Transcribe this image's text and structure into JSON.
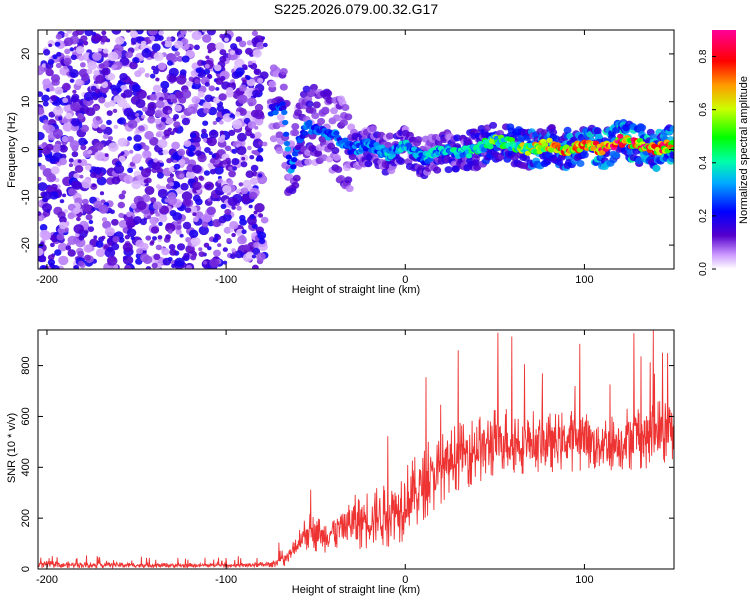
{
  "chart_data": [
    {
      "type": "heatmap",
      "title": "S225.2026.079.00.32.G17",
      "xlabel": "Height of straight line (km)",
      "ylabel": "Frequency (Hz)",
      "xlim": [
        -205,
        150
      ],
      "ylim": [
        -25,
        25
      ],
      "xticks": [
        -200,
        -100,
        0,
        100
      ],
      "xtick_labels": [
        "-200",
        "-100",
        "0",
        "100"
      ],
      "yticks": [
        -20,
        -10,
        0,
        10,
        20
      ],
      "ytick_labels": [
        "-20",
        "-10",
        "0",
        "10",
        "20"
      ],
      "colorbar": {
        "label": "Normalized spectral amplitude",
        "range": [
          0,
          0.9
        ],
        "ticks": [
          0.0,
          0.2,
          0.4,
          0.6,
          0.8
        ],
        "tick_labels": [
          "0.0",
          "0.2",
          "0.4",
          "0.6",
          "0.8"
        ]
      },
      "noise_region": {
        "x_range": [
          -205,
          -78
        ],
        "freq_range": [
          -25,
          25
        ],
        "amplitude": 0.1
      },
      "ridge": [
        {
          "x": -75,
          "f": 8,
          "amp": 0.25
        },
        {
          "x": -68,
          "f": 9,
          "amp": 0.3
        },
        {
          "x": -64,
          "f": -5,
          "amp": 0.35
        },
        {
          "x": -60,
          "f": 1,
          "amp": 0.25
        },
        {
          "x": -55,
          "f": 5,
          "amp": 0.35
        },
        {
          "x": -48,
          "f": 4,
          "amp": 0.3
        },
        {
          "x": -40,
          "f": 3,
          "amp": 0.3
        },
        {
          "x": -30,
          "f": 0,
          "amp": 0.3
        },
        {
          "x": -20,
          "f": 1,
          "amp": 0.35
        },
        {
          "x": -10,
          "f": -1,
          "amp": 0.35
        },
        {
          "x": 0,
          "f": 1,
          "amp": 0.35
        },
        {
          "x": 10,
          "f": -2,
          "amp": 0.35
        },
        {
          "x": 20,
          "f": 0,
          "amp": 0.4
        },
        {
          "x": 30,
          "f": -1,
          "amp": 0.4
        },
        {
          "x": 40,
          "f": 0,
          "amp": 0.45
        },
        {
          "x": 50,
          "f": 2,
          "amp": 0.55
        },
        {
          "x": 60,
          "f": 1,
          "amp": 0.55
        },
        {
          "x": 70,
          "f": 0,
          "amp": 0.65
        },
        {
          "x": 80,
          "f": 1,
          "amp": 0.7
        },
        {
          "x": 90,
          "f": 0,
          "amp": 0.75
        },
        {
          "x": 100,
          "f": 1,
          "amp": 0.75
        },
        {
          "x": 110,
          "f": 0,
          "amp": 0.8
        },
        {
          "x": 120,
          "f": 2,
          "amp": 0.85
        },
        {
          "x": 130,
          "f": 1,
          "amp": 0.85
        },
        {
          "x": 140,
          "f": 0,
          "amp": 0.8
        },
        {
          "x": 150,
          "f": 1,
          "amp": 0.8
        }
      ]
    },
    {
      "type": "line",
      "title": "",
      "xlabel": "Height of straight line (km)",
      "ylabel": "SNR (10 * v/v)",
      "xlim": [
        -205,
        150
      ],
      "ylim": [
        0,
        940
      ],
      "xticks": [
        -200,
        -100,
        0,
        100
      ],
      "xtick_labels": [
        "-200",
        "-100",
        "0",
        "100"
      ],
      "yticks": [
        0,
        200,
        400,
        600,
        800
      ],
      "ytick_labels": [
        "0",
        "200",
        "400",
        "600",
        "800"
      ],
      "series": [
        {
          "name": "SNR",
          "color": "#ee3333",
          "x": [
            -205,
            -180,
            -150,
            -120,
            -90,
            -75,
            -65,
            -55,
            -45,
            -35,
            -25,
            -15,
            -5,
            5,
            15,
            25,
            40,
            55,
            70,
            85,
            100,
            115,
            130,
            150
          ],
          "y": [
            18,
            16,
            15,
            14,
            15,
            18,
            50,
            150,
            130,
            170,
            190,
            210,
            240,
            290,
            360,
            430,
            470,
            510,
            500,
            500,
            510,
            490,
            530,
            540
          ],
          "spread": [
            25,
            20,
            18,
            16,
            16,
            20,
            60,
            130,
            110,
            160,
            190,
            220,
            250,
            250,
            240,
            220,
            230,
            230,
            210,
            200,
            210,
            200,
            230,
            240
          ]
        }
      ]
    }
  ]
}
